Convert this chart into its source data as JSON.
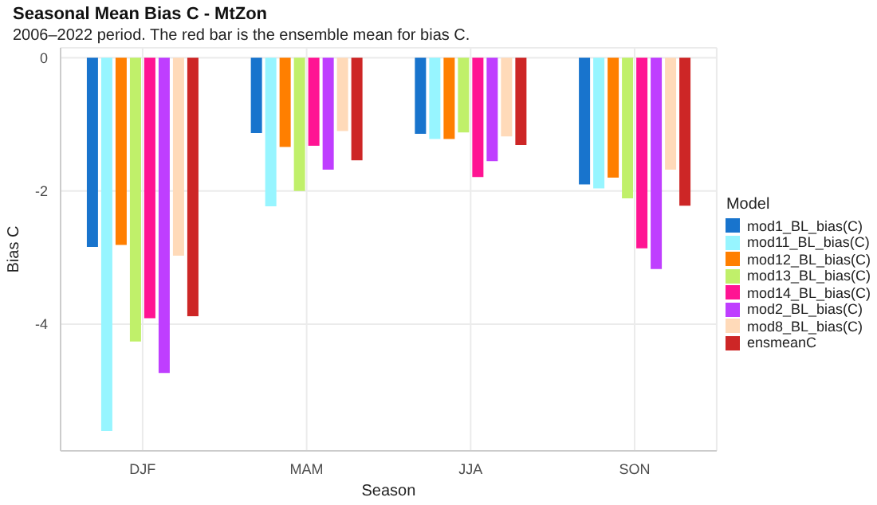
{
  "chart_data": {
    "type": "bar",
    "title": "Seasonal Mean Bias C - MtZon",
    "subtitle": "2006–2022 period. The red bar is the ensemble mean for bias C.",
    "xlabel": "Season",
    "ylabel": "Bias C",
    "legend_title": "Model",
    "categories": [
      "DJF",
      "MAM",
      "JJA",
      "SON"
    ],
    "series": [
      {
        "name": "mod1_BL_bias(C)",
        "color": "#1874cd",
        "values": [
          -2.84,
          -1.13,
          -1.14,
          -1.9
        ]
      },
      {
        "name": "mod11_BL_bias(C)",
        "color": "#97f5ff",
        "values": [
          -5.6,
          -2.23,
          -1.22,
          -1.96
        ]
      },
      {
        "name": "mod12_BL_bias(C)",
        "color": "#ff7f00",
        "values": [
          -2.81,
          -1.34,
          -1.22,
          -1.8
        ]
      },
      {
        "name": "mod13_BL_bias(C)",
        "color": "#c0f06a",
        "values": [
          -4.26,
          -2.0,
          -1.12,
          -2.11
        ]
      },
      {
        "name": "mod14_BL_bias(C)",
        "color": "#ff1493",
        "values": [
          -3.91,
          -1.32,
          -1.79,
          -2.86
        ]
      },
      {
        "name": "mod2_BL_bias(C)",
        "color": "#bf3eff",
        "values": [
          -4.73,
          -1.68,
          -1.55,
          -3.17
        ]
      },
      {
        "name": "mod8_BL_bias(C)",
        "color": "#ffdab9",
        "values": [
          -2.97,
          -1.1,
          -1.18,
          -1.68
        ]
      },
      {
        "name": "ensmeanC",
        "color": "#cd2626",
        "values": [
          -3.88,
          -1.54,
          -1.31,
          -2.22
        ]
      }
    ],
    "ylim": [
      -5.9,
      0.15
    ],
    "yticks": [
      -4,
      -2,
      0
    ],
    "grid": true,
    "legend": "right"
  }
}
